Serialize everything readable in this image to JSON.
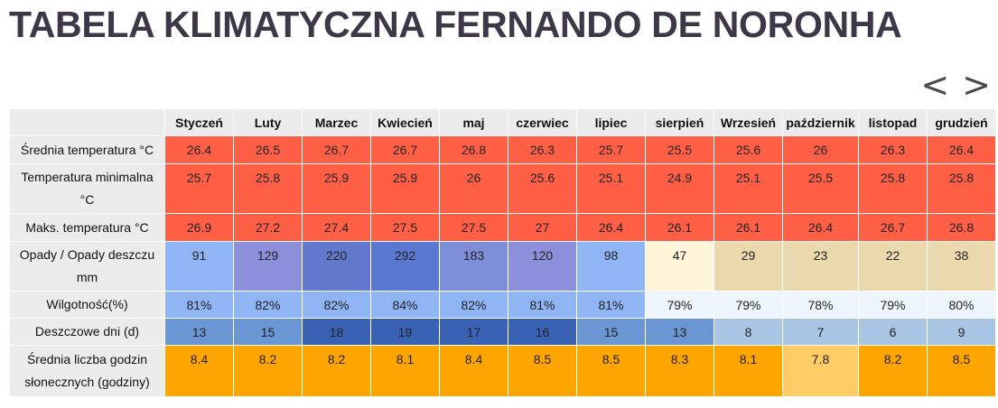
{
  "title": "TABELA KLIMATYCZNA FERNANDO DE NORONHA",
  "nav": {
    "prev": "<",
    "next": ">"
  },
  "months": [
    "Styczeń",
    "Luty",
    "Marzec",
    "Kwiecień",
    "maj",
    "czerwiec",
    "lipiec",
    "sierpień",
    "Wrzesień",
    "październik",
    "listopad",
    "grudzień"
  ],
  "rows": [
    {
      "key": "avg_temp",
      "label": "Średnia temperatura °C",
      "values": [
        "26.4",
        "26.5",
        "26.7",
        "26.7",
        "26.8",
        "26.3",
        "25.7",
        "25.5",
        "25.6",
        "26",
        "26.3",
        "26.4"
      ],
      "colors": [
        "#ff5f45",
        "#ff5f45",
        "#ff5f45",
        "#ff5f45",
        "#ff5f45",
        "#ff5f45",
        "#ff5f45",
        "#ff5f45",
        "#ff5f45",
        "#ff5f45",
        "#ff5f45",
        "#ff5f45"
      ]
    },
    {
      "key": "min_temp",
      "label": "Temperatura minimalna °C",
      "values": [
        "25.7",
        "25.8",
        "25.9",
        "25.9",
        "26",
        "25.6",
        "25.1",
        "24.9",
        "25.1",
        "25.5",
        "25.8",
        "25.8"
      ],
      "colors": [
        "#ff5f45",
        "#ff5f45",
        "#ff5f45",
        "#ff5f45",
        "#ff5f45",
        "#ff5f45",
        "#ff5f45",
        "#ff5f45",
        "#ff5f45",
        "#ff5f45",
        "#ff5f45",
        "#ff5f45"
      ]
    },
    {
      "key": "max_temp",
      "label": "Maks. temperatura °C",
      "values": [
        "26.9",
        "27.2",
        "27.4",
        "27.5",
        "27.5",
        "27",
        "26.4",
        "26.1",
        "26.1",
        "26.4",
        "26.7",
        "26.8"
      ],
      "colors": [
        "#ff5f45",
        "#ff5f45",
        "#ff5f45",
        "#ff5f45",
        "#ff5f45",
        "#ff5f45",
        "#ff5f45",
        "#ff5f45",
        "#ff5f45",
        "#ff5f45",
        "#ff5f45",
        "#ff5f45"
      ]
    },
    {
      "key": "precip",
      "label": "Opady / Opady deszczu mm",
      "values": [
        "91",
        "129",
        "220",
        "292",
        "183",
        "120",
        "98",
        "47",
        "29",
        "23",
        "22",
        "38"
      ],
      "colors": [
        "#8fb5f5",
        "#8c8fd9",
        "#6178cc",
        "#5b78d0",
        "#7e8ed9",
        "#8c8fd9",
        "#8fb5f5",
        "#fff6d9",
        "#ecd9ae",
        "#ecd9ae",
        "#ecd9ae",
        "#ecd9ae"
      ]
    },
    {
      "key": "humidity",
      "label": "Wilgotność(%)",
      "values": [
        "81%",
        "82%",
        "82%",
        "84%",
        "82%",
        "81%",
        "81%",
        "79%",
        "79%",
        "78%",
        "79%",
        "80%"
      ],
      "colors": [
        "#8fb5f5",
        "#8fb5f5",
        "#8fb5f5",
        "#8fb5f5",
        "#8fb5f5",
        "#8fb5f5",
        "#8fb5f5",
        "#eef5fc",
        "#eef5fc",
        "#eef5fc",
        "#eef5fc",
        "#eef5fc"
      ]
    },
    {
      "key": "rainy_days",
      "label": "Deszczowe dni (d)",
      "values": [
        "13",
        "15",
        "18",
        "19",
        "17",
        "16",
        "15",
        "13",
        "8",
        "7",
        "6",
        "9"
      ],
      "colors": [
        "#6a97d3",
        "#6a97d3",
        "#3a62b4",
        "#3a62b4",
        "#3a62b4",
        "#3a62b4",
        "#6a97d3",
        "#6a97d3",
        "#a9c5e4",
        "#a9c5e4",
        "#a9c5e4",
        "#a9c5e4"
      ]
    },
    {
      "key": "sunshine",
      "label": "Średnia liczba godzin słonecznych (godziny)",
      "values": [
        "8.4",
        "8.2",
        "8.2",
        "8.1",
        "8.4",
        "8.5",
        "8.5",
        "8.3",
        "8.1",
        "7.8",
        "8.2",
        "8.5"
      ],
      "colors": [
        "#ffa500",
        "#ffa500",
        "#ffa500",
        "#ffa500",
        "#ffa500",
        "#ffa500",
        "#ffa500",
        "#ffa500",
        "#ffa500",
        "#ffcc66",
        "#ffa500",
        "#ffa500"
      ]
    }
  ]
}
